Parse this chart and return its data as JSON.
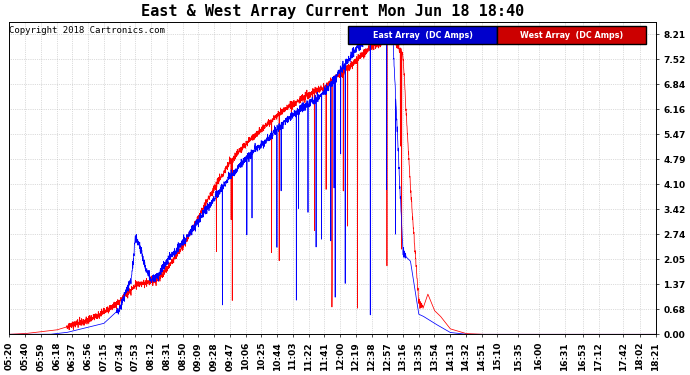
{
  "title": "East & West Array Current Mon Jun 18 18:40",
  "copyright": "Copyright 2018 Cartronics.com",
  "legend_east": "East Array  (DC Amps)",
  "legend_west": "West Array  (DC Amps)",
  "color_east": "#0000ff",
  "color_west": "#ff0000",
  "legend_east_bg": "#0000cc",
  "legend_west_bg": "#cc0000",
  "yticks": [
    8.21,
    7.52,
    6.84,
    6.16,
    5.47,
    4.79,
    4.1,
    3.42,
    2.74,
    2.05,
    1.37,
    0.68,
    0.0
  ],
  "ylim": [
    0.0,
    8.55
  ],
  "background_color": "#ffffff",
  "grid_color": "#bbbbbb",
  "title_fontsize": 11,
  "tick_fontsize": 6.5,
  "copyright_fontsize": 6.5
}
